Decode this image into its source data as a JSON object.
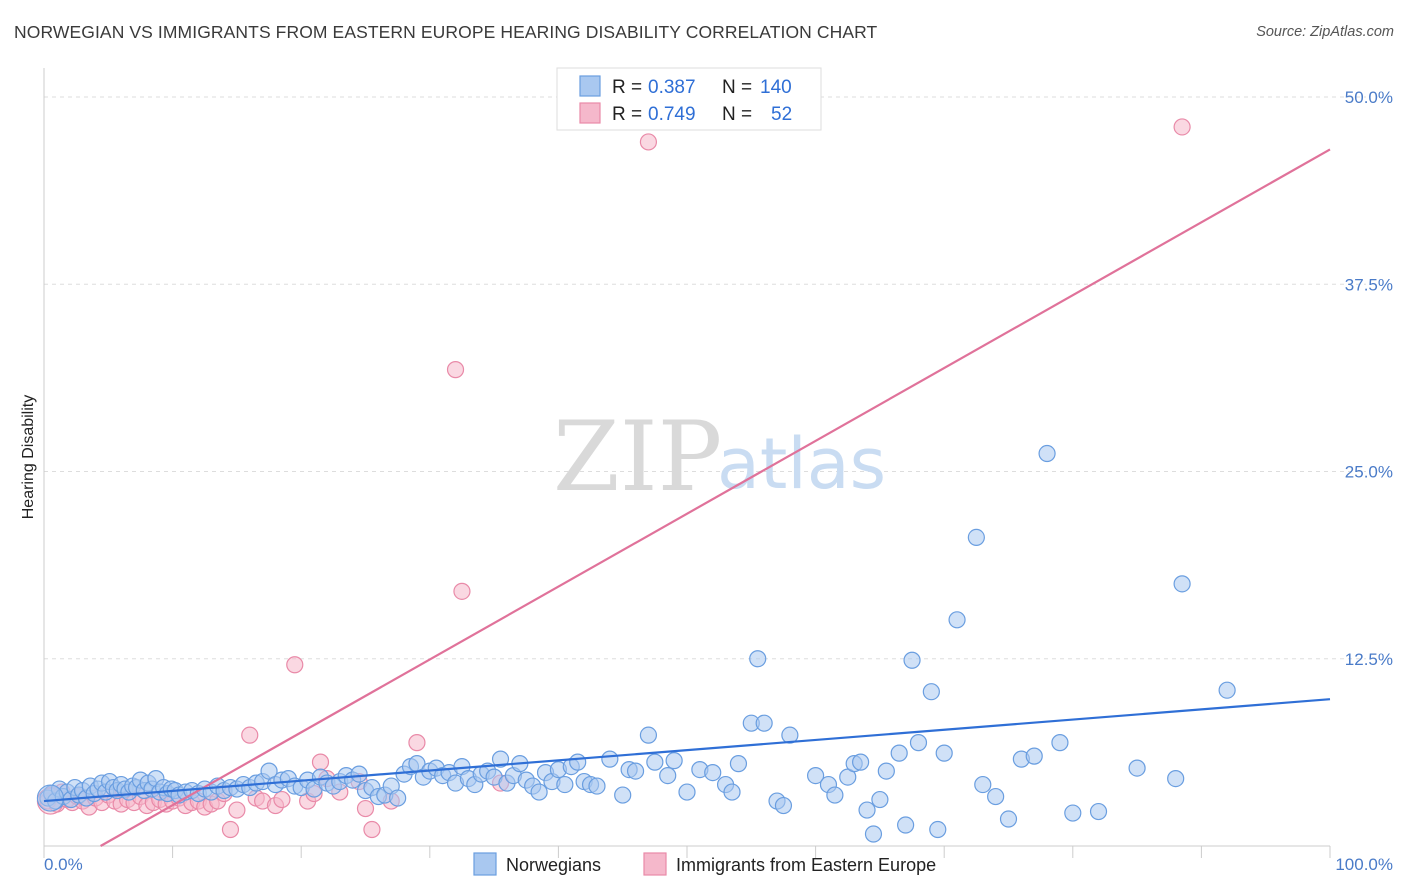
{
  "header": {
    "title": "NORWEGIAN VS IMMIGRANTS FROM EASTERN EUROPE HEARING DISABILITY CORRELATION CHART",
    "source": "Source: ZipAtlas.com"
  },
  "watermark": {
    "zip": "ZIP",
    "atlas": "atlas"
  },
  "colors": {
    "blue_fill": "#a9c8f0",
    "blue_stroke": "#6a9ee0",
    "blue_line": "#2f6fd6",
    "pink_fill": "#f5b8cb",
    "pink_stroke": "#e98aa8",
    "pink_line": "#e0729a",
    "grid": "#dddddd",
    "tick_label": "#4a7bc8"
  },
  "legend": {
    "rows": [
      {
        "r_label": "R =",
        "r_value": "0.387",
        "n_label": "N =",
        "n_value": "140"
      },
      {
        "r_label": "R =",
        "r_value": "0.749",
        "n_label": "N =",
        "n_value": "52"
      }
    ]
  },
  "bottom_legend": [
    "Norwegians",
    "Immigrants from Eastern Europe"
  ],
  "chart_data": {
    "type": "scatter",
    "title": "NORWEGIAN VS IMMIGRANTS FROM EASTERN EUROPE HEARING DISABILITY CORRELATION CHART",
    "xlabel": "",
    "ylabel": "Hearing Disability",
    "xlim": [
      0,
      100
    ],
    "ylim": [
      0,
      50
    ],
    "x_tick_labels": [
      "0.0%",
      "100.0%"
    ],
    "y_ticks": [
      12.5,
      25.0,
      37.5,
      50.0
    ],
    "y_tick_labels": [
      "12.5%",
      "25.0%",
      "37.5%",
      "50.0%"
    ],
    "grid": "horizontal dashed",
    "legend_position": "top-center",
    "series": [
      {
        "name": "Norwegians",
        "color": "#a9c8f0",
        "r": 0.387,
        "n": 140,
        "trend": {
          "x": [
            0,
            100
          ],
          "y": [
            3.0,
            9.8
          ]
        },
        "points": [
          [
            0.3,
            3.2
          ],
          [
            0.6,
            3.5
          ],
          [
            0.9,
            3.0
          ],
          [
            1.2,
            3.8
          ],
          [
            1.5,
            3.3
          ],
          [
            1.8,
            3.6
          ],
          [
            2.1,
            3.1
          ],
          [
            2.4,
            3.9
          ],
          [
            2.7,
            3.4
          ],
          [
            3.0,
            3.7
          ],
          [
            3.3,
            3.2
          ],
          [
            3.6,
            4.0
          ],
          [
            3.9,
            3.5
          ],
          [
            4.2,
            3.8
          ],
          [
            4.5,
            4.2
          ],
          [
            4.8,
            3.6
          ],
          [
            5.1,
            4.3
          ],
          [
            5.4,
            3.9
          ],
          [
            5.7,
            3.7
          ],
          [
            6.0,
            4.1
          ],
          [
            6.3,
            3.8
          ],
          [
            6.6,
            3.6
          ],
          [
            6.9,
            4.0
          ],
          [
            7.2,
            3.9
          ],
          [
            7.5,
            4.4
          ],
          [
            7.8,
            3.7
          ],
          [
            8.1,
            4.2
          ],
          [
            8.4,
            3.8
          ],
          [
            8.7,
            4.5
          ],
          [
            9.0,
            3.6
          ],
          [
            9.3,
            3.9
          ],
          [
            9.6,
            3.5
          ],
          [
            9.9,
            3.8
          ],
          [
            10.2,
            3.7
          ],
          [
            10.5,
            3.4
          ],
          [
            11.0,
            3.6
          ],
          [
            11.5,
            3.7
          ],
          [
            12.0,
            3.5
          ],
          [
            12.5,
            3.8
          ],
          [
            13.0,
            3.6
          ],
          [
            13.5,
            4.0
          ],
          [
            14.0,
            3.7
          ],
          [
            14.5,
            3.9
          ],
          [
            15.0,
            3.8
          ],
          [
            15.5,
            4.1
          ],
          [
            16.0,
            3.9
          ],
          [
            16.5,
            4.2
          ],
          [
            17.0,
            4.3
          ],
          [
            17.5,
            5.0
          ],
          [
            18.0,
            4.1
          ],
          [
            18.5,
            4.4
          ],
          [
            19.0,
            4.5
          ],
          [
            19.5,
            4.0
          ],
          [
            20.0,
            3.9
          ],
          [
            20.5,
            4.4
          ],
          [
            21.0,
            3.8
          ],
          [
            21.5,
            4.6
          ],
          [
            22.0,
            4.2
          ],
          [
            22.5,
            4.0
          ],
          [
            23.0,
            4.3
          ],
          [
            23.5,
            4.7
          ],
          [
            24.0,
            4.4
          ],
          [
            24.5,
            4.8
          ],
          [
            25.0,
            3.7
          ],
          [
            25.5,
            3.9
          ],
          [
            26.0,
            3.3
          ],
          [
            26.5,
            3.4
          ],
          [
            27.0,
            4.0
          ],
          [
            27.5,
            3.2
          ],
          [
            28.0,
            4.8
          ],
          [
            28.5,
            5.3
          ],
          [
            29.0,
            5.5
          ],
          [
            29.5,
            4.6
          ],
          [
            30.0,
            5.0
          ],
          [
            30.5,
            5.2
          ],
          [
            31.0,
            4.7
          ],
          [
            31.5,
            4.9
          ],
          [
            32.0,
            4.2
          ],
          [
            32.5,
            5.3
          ],
          [
            33.0,
            4.5
          ],
          [
            33.5,
            4.1
          ],
          [
            34.0,
            4.8
          ],
          [
            34.5,
            5.0
          ],
          [
            35.0,
            4.6
          ],
          [
            35.5,
            5.8
          ],
          [
            36.0,
            4.2
          ],
          [
            36.5,
            4.7
          ],
          [
            37.0,
            5.5
          ],
          [
            37.5,
            4.4
          ],
          [
            38.0,
            4.0
          ],
          [
            38.5,
            3.6
          ],
          [
            39.0,
            4.9
          ],
          [
            39.5,
            4.3
          ],
          [
            40.0,
            5.1
          ],
          [
            40.5,
            4.1
          ],
          [
            41.0,
            5.3
          ],
          [
            41.5,
            5.6
          ],
          [
            42.0,
            4.3
          ],
          [
            42.5,
            4.1
          ],
          [
            43.0,
            4.0
          ],
          [
            44.0,
            5.8
          ],
          [
            45.0,
            3.4
          ],
          [
            45.5,
            5.1
          ],
          [
            46.0,
            5.0
          ],
          [
            47.0,
            7.4
          ],
          [
            47.5,
            5.6
          ],
          [
            48.5,
            4.7
          ],
          [
            49.0,
            5.7
          ],
          [
            50.0,
            3.6
          ],
          [
            51.0,
            5.1
          ],
          [
            52.0,
            4.9
          ],
          [
            53.0,
            4.1
          ],
          [
            53.5,
            3.6
          ],
          [
            54.0,
            5.5
          ],
          [
            55.0,
            8.2
          ],
          [
            55.5,
            12.5
          ],
          [
            56.0,
            8.2
          ],
          [
            57.0,
            3.0
          ],
          [
            57.5,
            2.7
          ],
          [
            58.0,
            7.4
          ],
          [
            60.0,
            4.7
          ],
          [
            61.0,
            4.1
          ],
          [
            61.5,
            3.4
          ],
          [
            62.5,
            4.6
          ],
          [
            63.0,
            5.5
          ],
          [
            63.5,
            5.6
          ],
          [
            64.0,
            2.4
          ],
          [
            64.5,
            0.8
          ],
          [
            65.0,
            3.1
          ],
          [
            65.5,
            5.0
          ],
          [
            66.5,
            6.2
          ],
          [
            67.0,
            1.4
          ],
          [
            67.5,
            12.4
          ],
          [
            68.0,
            6.9
          ],
          [
            69.0,
            10.3
          ],
          [
            69.5,
            1.1
          ],
          [
            70.0,
            6.2
          ],
          [
            71.0,
            15.1
          ],
          [
            72.5,
            20.6
          ],
          [
            73.0,
            4.1
          ],
          [
            74.0,
            3.3
          ],
          [
            75.0,
            1.8
          ],
          [
            76.0,
            5.8
          ],
          [
            77.0,
            6.0
          ],
          [
            78.0,
            26.2
          ],
          [
            79.0,
            6.9
          ],
          [
            80.0,
            2.2
          ],
          [
            82.0,
            2.3
          ],
          [
            85.0,
            5.2
          ],
          [
            88.0,
            4.5
          ],
          [
            88.5,
            17.5
          ],
          [
            92.0,
            10.4
          ]
        ]
      },
      {
        "name": "Immigrants from Eastern Europe",
        "color": "#f5b8cb",
        "r": 0.749,
        "n": 52,
        "trend": {
          "x": [
            4.4,
            100
          ],
          "y": [
            0,
            46.5
          ]
        },
        "points": [
          [
            0.3,
            3.0
          ],
          [
            0.6,
            3.4
          ],
          [
            1.0,
            2.8
          ],
          [
            1.4,
            3.6
          ],
          [
            1.8,
            3.1
          ],
          [
            2.2,
            2.9
          ],
          [
            2.6,
            3.3
          ],
          [
            3.0,
            3.0
          ],
          [
            3.5,
            2.6
          ],
          [
            4.0,
            3.2
          ],
          [
            4.5,
            2.9
          ],
          [
            5.0,
            3.4
          ],
          [
            5.5,
            3.0
          ],
          [
            6.0,
            2.8
          ],
          [
            6.5,
            3.1
          ],
          [
            7.0,
            2.9
          ],
          [
            7.5,
            3.3
          ],
          [
            8.0,
            2.7
          ],
          [
            8.5,
            2.9
          ],
          [
            9.0,
            3.1
          ],
          [
            9.5,
            2.8
          ],
          [
            10.0,
            3.0
          ],
          [
            10.5,
            3.2
          ],
          [
            11.0,
            2.7
          ],
          [
            11.5,
            2.9
          ],
          [
            12.0,
            3.0
          ],
          [
            12.5,
            2.6
          ],
          [
            13.0,
            2.8
          ],
          [
            13.5,
            3.0
          ],
          [
            14.0,
            3.5
          ],
          [
            14.5,
            1.1
          ],
          [
            15.0,
            2.4
          ],
          [
            16.0,
            7.4
          ],
          [
            16.5,
            3.2
          ],
          [
            17.0,
            3.0
          ],
          [
            18.0,
            2.7
          ],
          [
            18.5,
            3.1
          ],
          [
            19.5,
            12.1
          ],
          [
            20.5,
            3.0
          ],
          [
            21.0,
            3.5
          ],
          [
            21.5,
            5.6
          ],
          [
            22.0,
            4.5
          ],
          [
            23.0,
            3.6
          ],
          [
            24.5,
            4.3
          ],
          [
            25.0,
            2.5
          ],
          [
            25.5,
            1.1
          ],
          [
            27.0,
            3.0
          ],
          [
            29.0,
            6.9
          ],
          [
            32.0,
            31.8
          ],
          [
            32.5,
            17.0
          ],
          [
            35.5,
            4.2
          ],
          [
            88.5,
            48.0
          ]
        ]
      }
    ],
    "extra_pink_points_top": [
      [
        47,
        47.0
      ]
    ]
  }
}
